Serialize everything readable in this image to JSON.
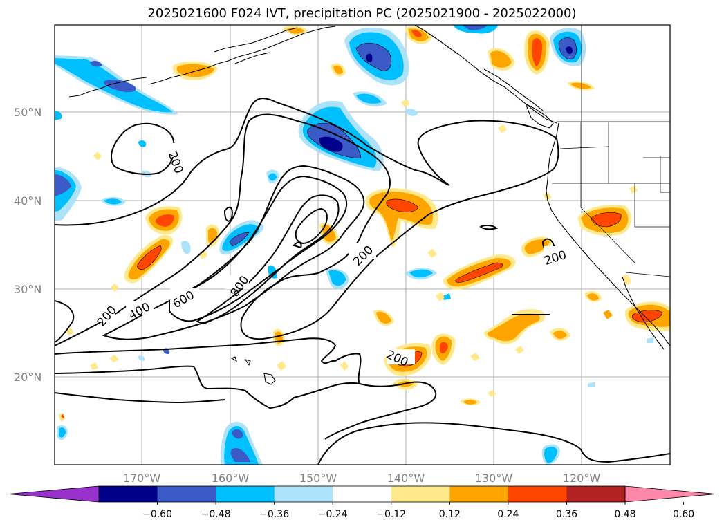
{
  "title": "2025021600 F024 IVT, precipitation PC (2025021900 - 2025022000)",
  "lat_labels": [
    "50°N",
    "40°N",
    "30°N",
    "20°N"
  ],
  "lon_labels": [
    "170°W",
    "160°W",
    "150°W",
    "140°W",
    "130°W",
    "120°W"
  ],
  "contour_labels": [
    "200",
    "200",
    "400",
    "600",
    "800",
    "200",
    "200",
    "200"
  ],
  "colorbar": {
    "ticks": [
      "−0.60",
      "−0.48",
      "−0.36",
      "−0.24",
      "−0.12",
      "0.12",
      "0.24",
      "0.36",
      "0.48",
      "0.60"
    ],
    "colors": [
      "#9932CC",
      "#00008B",
      "#3A5BC7",
      "#00BFFF",
      "#ADE3FA",
      "#FFFFFF",
      "#FFE98A",
      "#FFA500",
      "#FF4500",
      "#B22222",
      "#FF88AA"
    ]
  }
}
